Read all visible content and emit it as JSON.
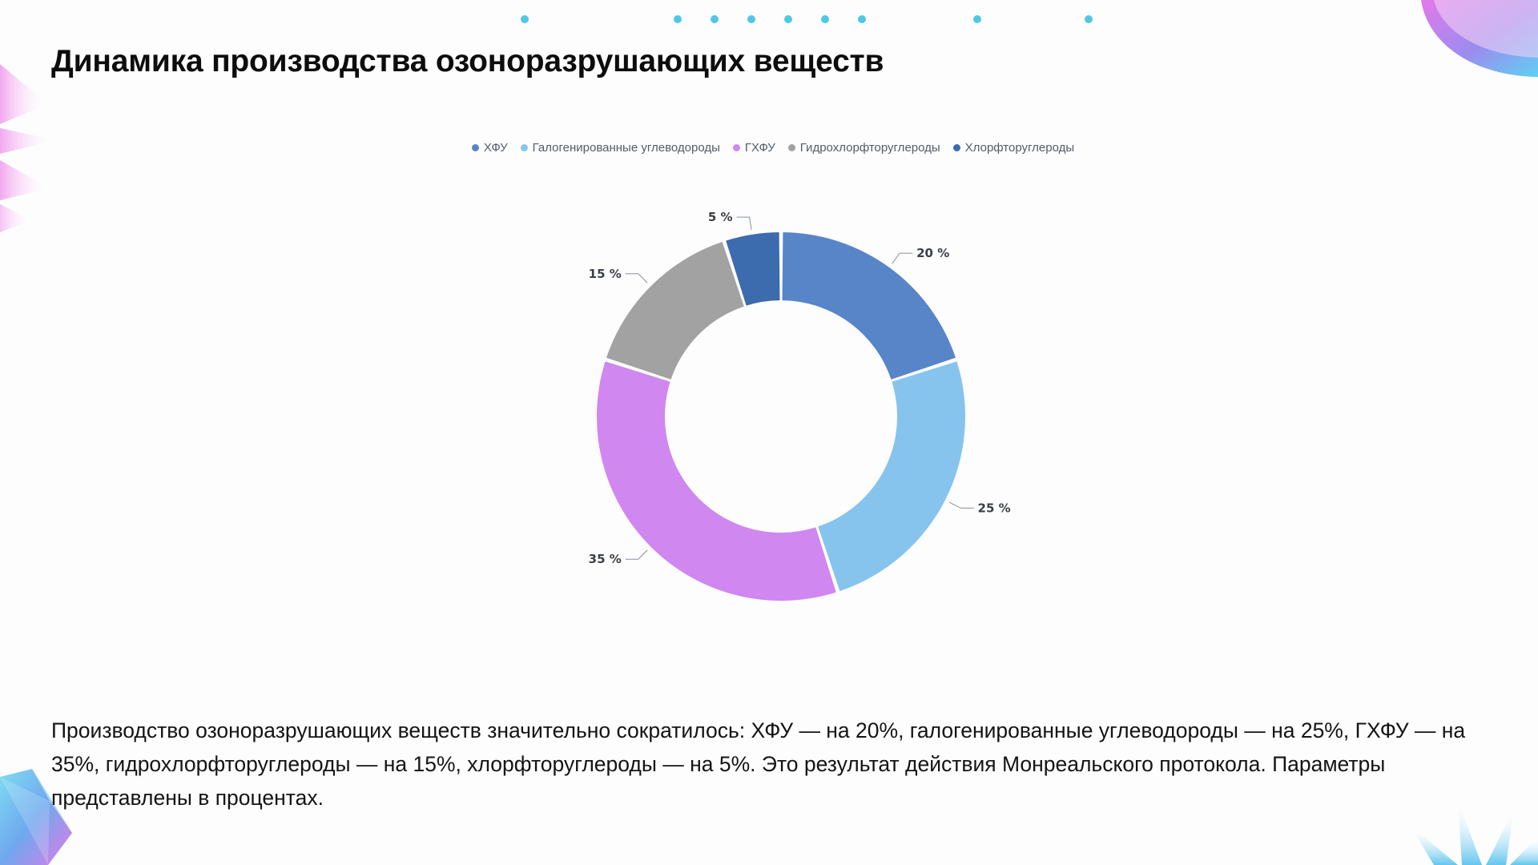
{
  "slide": {
    "title": "Динамика производства озоноразрушающих веществ",
    "caption": "Производство озоноразрушающих веществ значительно сократилось: ХФУ — на 20%, галогенированные углеводороды — на 25%, ГХФУ — на 35%, гидрохлорфторуглероды — на 15%, хлорфторуглероды — на 5%. Это результат действия Монреальского протокола. Параметры представлены в процентах."
  },
  "chart_data": {
    "type": "pie",
    "variant": "donut",
    "title": "",
    "legend_position": "top-center",
    "unit": "%",
    "categories": [
      "ХФУ",
      "Галогенированные углеводороды",
      "ГХФУ",
      "Гидрохлорфторуглероды",
      "Хлорфторуглероды"
    ],
    "values": [
      20,
      25,
      35,
      15,
      5
    ],
    "labels": [
      "20 %",
      "25 %",
      "35 %",
      "15 %",
      "5 %"
    ],
    "colors": [
      "#5885c8",
      "#86c4ee",
      "#d087ef",
      "#a2a2a2",
      "#3c6bae"
    ]
  },
  "decor_colors": {
    "dots": "#4fc8e6",
    "accent_pink": "#e77de6",
    "accent_blue": "#63c6ef"
  }
}
